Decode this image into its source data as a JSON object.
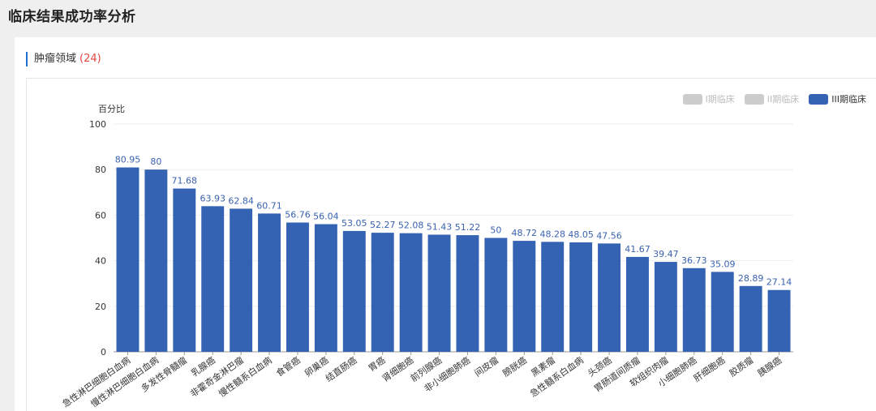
{
  "page_title": "临床结果成功率分析",
  "section": {
    "title": "肿瘤领域",
    "count": "(24)"
  },
  "legend": [
    {
      "label": "I期临床",
      "active": false
    },
    {
      "label": "II期临床",
      "active": false
    },
    {
      "label": "III期临床",
      "active": true
    }
  ],
  "colors": {
    "bar": "#3563b3",
    "label": "#3a62b0",
    "inactive_legend": "#cccccc"
  },
  "chart_data": {
    "type": "bar",
    "ylabel": "百分比",
    "ylim": [
      0,
      100
    ],
    "yticks": [
      0,
      20,
      40,
      60,
      80,
      100
    ],
    "grid": true,
    "legend_position": "top-right",
    "categories": [
      "急性淋巴细胞白血病",
      "慢性淋巴细胞白血病",
      "多发性骨髓瘤",
      "乳腺癌",
      "非霍奇金淋巴瘤",
      "慢性髓系白血病",
      "食管癌",
      "卵巢癌",
      "结直肠癌",
      "胃癌",
      "肾细胞癌",
      "前列腺癌",
      "非小细胞肺癌",
      "间皮瘤",
      "膀胱癌",
      "黑素瘤",
      "急性髓系白血病",
      "头颈癌",
      "胃肠道间质瘤",
      "软组织肉瘤",
      "小细胞肺癌",
      "肝细胞癌",
      "胶质瘤",
      "胰腺癌"
    ],
    "series": [
      {
        "name": "III期临床",
        "values": [
          80.95,
          80,
          71.68,
          63.93,
          62.84,
          60.71,
          56.76,
          56.04,
          53.05,
          52.27,
          52.08,
          51.43,
          51.22,
          50,
          48.72,
          48.28,
          48.05,
          47.56,
          41.67,
          39.47,
          36.73,
          35.09,
          28.89,
          27.14
        ]
      }
    ]
  }
}
